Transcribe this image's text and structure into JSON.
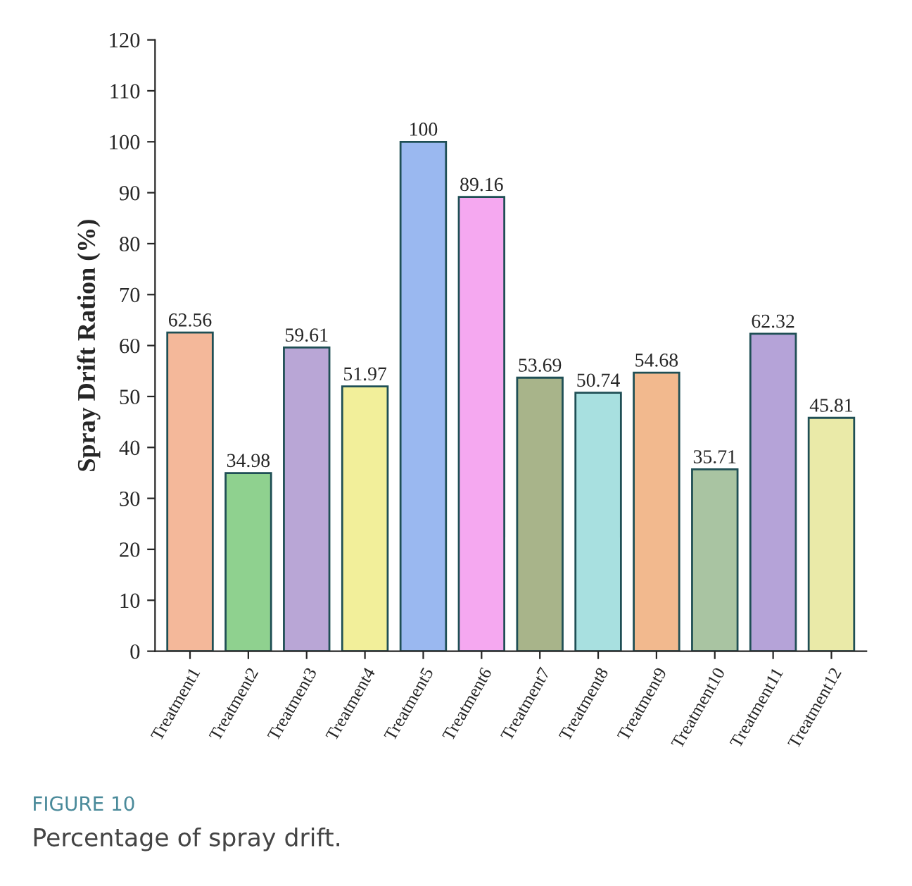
{
  "chart_data": {
    "type": "bar",
    "ylabel": "Spray Drift Ration (%)",
    "categories": [
      "Treatment1",
      "Treatment2",
      "Treatment3",
      "Treatment4",
      "Treatment5",
      "Treatment6",
      "Treatment7",
      "Treatment8",
      "Treatment9",
      "Treatment10",
      "Treatment11",
      "Treatment12"
    ],
    "values": [
      62.56,
      34.98,
      59.61,
      51.97,
      100,
      89.16,
      53.69,
      50.74,
      54.68,
      35.71,
      62.32,
      45.81
    ],
    "colors": [
      "#f4b89a",
      "#8fd18f",
      "#b9a6d6",
      "#f2ef9a",
      "#9ab8f0",
      "#f5a8f0",
      "#a8b48a",
      "#a8e0e0",
      "#f2b98e",
      "#a9c4a2",
      "#b5a3d8",
      "#eaeaa8"
    ],
    "ylim": [
      0,
      120
    ],
    "yticks": [
      0,
      10,
      20,
      30,
      40,
      50,
      60,
      70,
      80,
      90,
      100,
      110,
      120
    ],
    "data_labels": true,
    "grid": false,
    "annotations": [
      "FIGURE 10",
      "Percentage of spray drift."
    ]
  }
}
